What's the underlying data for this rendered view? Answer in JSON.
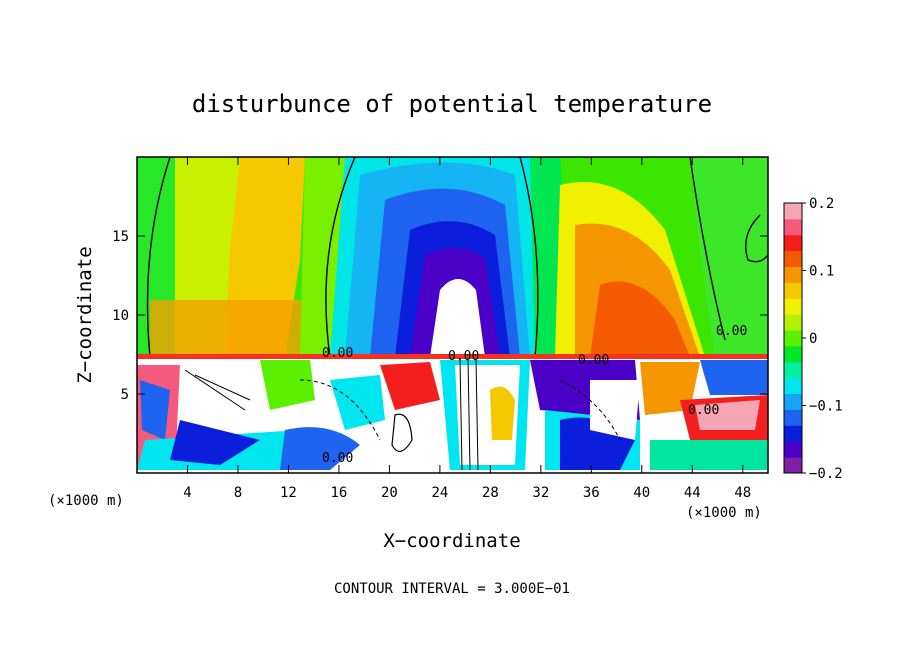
{
  "chart_data": {
    "type": "heatmap",
    "title": "disturbunce of potential temperature",
    "xlabel": "X−coordinate",
    "ylabel": "Z−coordinate",
    "x_unit": "(×1000 m)",
    "x_unit_right": "(×1000 m)",
    "xlim": [
      0,
      50
    ],
    "ylim": [
      0,
      20
    ],
    "x_ticks": [
      4,
      8,
      12,
      16,
      20,
      24,
      28,
      32,
      36,
      40,
      44,
      48
    ],
    "y_ticks": [
      5,
      10,
      15
    ],
    "colorbar": {
      "range": [
        -0.2,
        0.2
      ],
      "ticks": [
        0.2,
        0.1,
        0,
        -0.1,
        -0.2
      ],
      "tick_labels": [
        "0.2",
        "0.1",
        "0",
        "−0.1",
        "−0.2"
      ],
      "colors": [
        "#7f1fa5",
        "#4b00c8",
        "#0a1edc",
        "#1e64f0",
        "#14a5f5",
        "#00e6f0",
        "#00f0a0",
        "#00e628",
        "#5af000",
        "#b4f000",
        "#f0f000",
        "#f5c800",
        "#f59600",
        "#f55a00",
        "#f51e1e",
        "#f55a7d",
        "#f5a5b4"
      ]
    },
    "contour_labels": [
      "0.00",
      "0.00",
      "0.00",
      "0.00",
      "0.00",
      "0.00"
    ],
    "footer": "CONTOUR INTERVAL = 3.000E−01",
    "grid": false
  }
}
